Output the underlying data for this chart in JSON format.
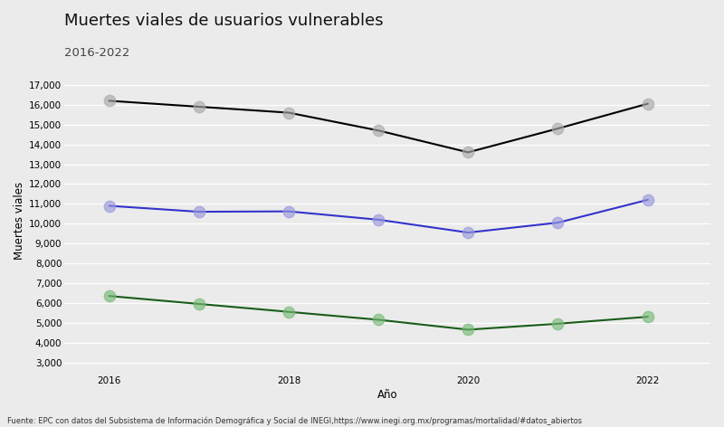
{
  "title": "Muertes viales de usuarios vulnerables",
  "subtitle": "2016-2022",
  "xlabel": "Año",
  "ylabel": "Muertes viales",
  "years": [
    2016,
    2017,
    2018,
    2019,
    2020,
    2021,
    2022
  ],
  "series": {
    "black": {
      "values": [
        16200,
        15900,
        15600,
        14700,
        13600,
        14800,
        16050
      ],
      "color": "#000000",
      "marker_color": "#aaaaaa"
    },
    "blue": {
      "values": [
        10900,
        10600,
        10620,
        10200,
        9550,
        10050,
        11200
      ],
      "color": "#3333cc",
      "marker_color": "#9999dd"
    },
    "green": {
      "values": [
        6350,
        5950,
        5550,
        5150,
        4650,
        4950,
        5300
      ],
      "color": "#1a5c1a",
      "marker_color": "#77bb77"
    }
  },
  "ylim": [
    2500,
    17800
  ],
  "yticks": [
    3000,
    4000,
    5000,
    6000,
    7000,
    8000,
    9000,
    10000,
    11000,
    12000,
    13000,
    14000,
    15000,
    16000,
    17000
  ],
  "xticks": [
    2016,
    2018,
    2020,
    2022
  ],
  "background_color": "#ebebeb",
  "plot_background": "#ebebeb",
  "caption": "Fuente: EPC con datos del Subsistema de Información Demográfica y Social de INEGI,https://www.inegi.org.mx/programas/mortalidad/#datos_abiertos",
  "title_fontsize": 13,
  "subtitle_fontsize": 9.5,
  "axis_label_fontsize": 8.5,
  "tick_fontsize": 7.5,
  "caption_fontsize": 6.0,
  "marker_size": 80,
  "linewidth": 1.5
}
